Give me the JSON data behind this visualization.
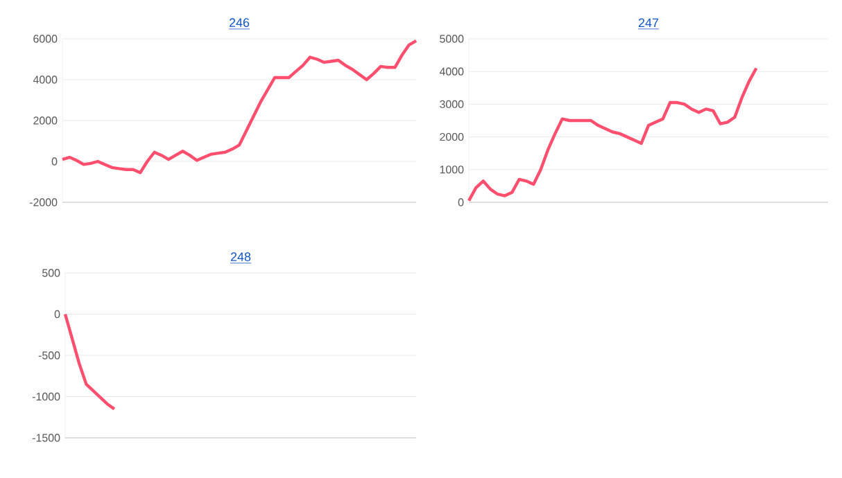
{
  "chart_data": [
    {
      "type": "line",
      "title": "246",
      "categories": [
        null,
        null,
        null,
        null,
        null,
        null,
        null,
        null,
        null,
        null,
        null,
        null,
        null,
        null,
        null,
        null,
        null,
        null,
        null,
        null,
        null,
        null,
        null,
        null,
        null,
        null,
        null,
        null,
        null,
        null,
        null,
        null,
        null,
        null,
        null,
        null,
        null,
        null,
        null,
        null,
        null,
        null,
        null,
        null,
        null,
        null,
        null,
        null,
        null,
        null,
        null
      ],
      "series": [
        {
          "color": "#ff4f6e",
          "values": [
            100,
            200,
            50,
            -150,
            -100,
            0,
            -150,
            -300,
            -350,
            -400,
            -400,
            -550,
            0,
            450,
            300,
            100,
            300,
            500,
            300,
            50,
            200,
            350,
            400,
            450,
            600,
            800,
            1500,
            2200,
            2900,
            3500,
            4100,
            4100,
            4100,
            4400,
            4700,
            5100,
            5000,
            4850,
            4900,
            4950,
            4700,
            4500,
            4250,
            4000,
            4300,
            4650,
            4600,
            4600,
            5200,
            5700,
            5900
          ]
        }
      ],
      "ylim": [
        -2000,
        6000
      ],
      "yticks": [
        -2000,
        0,
        2000,
        4000,
        6000
      ],
      "grid": "y",
      "marker": "none",
      "line_style": "solid"
    },
    {
      "type": "line",
      "title": "247",
      "categories": [
        null,
        null,
        null,
        null,
        null,
        null,
        null,
        null,
        null,
        null,
        null,
        null,
        null,
        null,
        null,
        null,
        null,
        null,
        null,
        null,
        null,
        null,
        null,
        null,
        null,
        null,
        null,
        null,
        null,
        null,
        null,
        null,
        null,
        null,
        null,
        null,
        null,
        null,
        null,
        null,
        null,
        null,
        null,
        null,
        null,
        null,
        null,
        null,
        null,
        null,
        null
      ],
      "series": [
        {
          "color": "#ff4f6e",
          "values": [
            50,
            450,
            650,
            400,
            250,
            200,
            300,
            700,
            650,
            550,
            1000,
            1600,
            2100,
            2550,
            2500,
            2500,
            2500,
            2500,
            2350,
            2250,
            2150,
            2100,
            2000,
            1900,
            1800,
            2350,
            2450,
            2550,
            3050,
            3050,
            3000,
            2850,
            2750,
            2850,
            2800,
            2400,
            2450,
            2600,
            3200,
            3700,
            4100,
            null,
            null,
            null,
            null,
            null,
            null,
            null,
            null,
            null,
            null
          ]
        }
      ],
      "ylim": [
        0,
        5000
      ],
      "yticks": [
        0,
        1000,
        2000,
        3000,
        4000,
        5000
      ],
      "grid": "y",
      "marker": "none",
      "line_style": "solid"
    },
    {
      "type": "line",
      "title": "248",
      "categories": [
        null,
        null,
        null,
        null,
        null,
        null,
        null,
        null,
        null,
        null,
        null,
        null,
        null,
        null,
        null,
        null,
        null,
        null,
        null,
        null,
        null,
        null,
        null,
        null,
        null,
        null,
        null,
        null,
        null,
        null,
        null,
        null,
        null,
        null,
        null,
        null,
        null,
        null,
        null,
        null,
        null,
        null,
        null,
        null,
        null,
        null,
        null,
        null,
        null,
        null,
        null
      ],
      "series": [
        {
          "color": "#ff4f6e",
          "values": [
            0,
            -300,
            -600,
            -850,
            -930,
            -1010,
            -1090,
            -1150,
            null,
            null,
            null,
            null,
            null,
            null,
            null,
            null,
            null,
            null,
            null,
            null,
            null,
            null,
            null,
            null,
            null,
            null,
            null,
            null,
            null,
            null,
            null,
            null,
            null,
            null,
            null,
            null,
            null,
            null,
            null,
            null,
            null,
            null,
            null,
            null,
            null,
            null,
            null,
            null,
            null,
            null,
            null
          ]
        }
      ],
      "ylim": [
        -1500,
        500
      ],
      "yticks": [
        -1500,
        -1000,
        -500,
        0,
        500
      ],
      "grid": "y",
      "marker": "none",
      "line_style": "solid"
    }
  ]
}
